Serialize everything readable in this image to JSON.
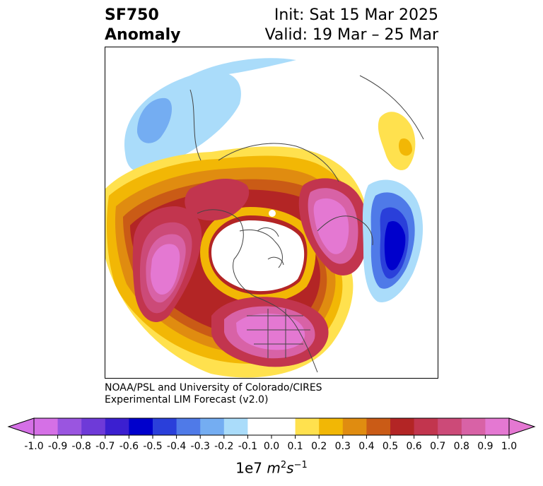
{
  "title": {
    "variable": "SF750",
    "kind": "Anomaly",
    "init": "Init: Sat 15 Mar 2025",
    "valid": "Valid: 19 Mar – 25 Mar"
  },
  "credit": {
    "line1": "NOAA/PSL and University of Colorado/CIRES",
    "line2": "Experimental LIM Forecast (v2.0)"
  },
  "map": {
    "projection": "north-polar-stereographic",
    "field": "750 hPa streamfunction anomaly",
    "features": [
      {
        "sign": "positive",
        "peak": 0.9,
        "region": "northern Pacific / Gulf of Alaska"
      },
      {
        "sign": "positive",
        "peak": 0.9,
        "region": "eastern North America"
      },
      {
        "sign": "positive",
        "peak": 0.9,
        "region": "northern Siberia / Kara Sea"
      },
      {
        "sign": "negative",
        "peak": -0.6,
        "region": "eastern Mediterranean / Middle East"
      },
      {
        "sign": "negative",
        "peak": -0.3,
        "region": "North Atlantic"
      },
      {
        "sign": "positive",
        "peak": 0.2,
        "region": "India / southern Asia"
      }
    ]
  },
  "colorbar": {
    "ticks": [
      "-1.0",
      "-0.9",
      "-0.8",
      "-0.7",
      "-0.6",
      "-0.5",
      "-0.4",
      "-0.3",
      "-0.2",
      "-0.1",
      "0.0",
      "0.1",
      "0.2",
      "0.3",
      "0.4",
      "0.5",
      "0.6",
      "0.7",
      "0.8",
      "0.9",
      "1.0"
    ],
    "colors": [
      "#d570e6",
      "#9a55e0",
      "#6e3ad8",
      "#3b1fd0",
      "#0000cc",
      "#2a3fda",
      "#4f7ae8",
      "#74adf2",
      "#aadcfa",
      "#ffffff",
      "#ffffff",
      "#ffe14e",
      "#f2b705",
      "#e08c10",
      "#ca5b16",
      "#b32525",
      "#c2354e",
      "#cc4a78",
      "#d862a6",
      "#e478d2"
    ],
    "extend_low_color": "#d570e6",
    "extend_high_color": "#e478d2",
    "unit_prefix": "1e7",
    "unit_m": "m",
    "unit_m_exp": "2",
    "unit_s": "s",
    "unit_s_exp": "−1"
  }
}
